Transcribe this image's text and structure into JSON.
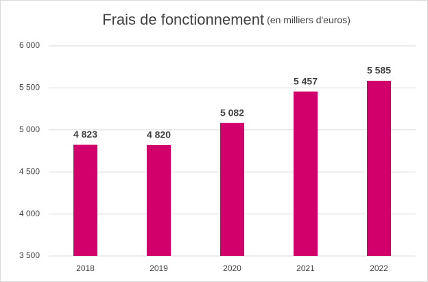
{
  "chart_data": {
    "type": "bar",
    "title": "Frais de fonctionnement",
    "subtitle": "(en milliers d'euros)",
    "categories": [
      "2018",
      "2019",
      "2020",
      "2021",
      "2022"
    ],
    "values": [
      4823,
      4820,
      5082,
      5457,
      5585
    ],
    "value_labels": [
      "4 823",
      "4 820",
      "5 082",
      "5 457",
      "5 585"
    ],
    "color": "#d1006b",
    "ylim": [
      3500,
      6000
    ],
    "yticks": [
      {
        "value": 3500,
        "label": "3 500"
      },
      {
        "value": 4000,
        "label": "4 000"
      },
      {
        "value": 4500,
        "label": "4 500"
      },
      {
        "value": 5000,
        "label": "5 000"
      },
      {
        "value": 5500,
        "label": "5 500"
      },
      {
        "value": 6000,
        "label": "6 000"
      }
    ],
    "grid": true
  }
}
